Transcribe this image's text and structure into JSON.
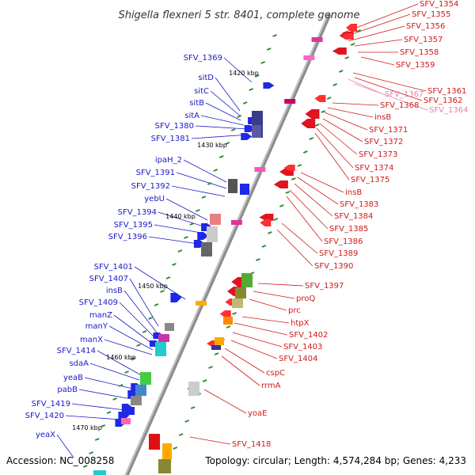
{
  "title": "Shigella flexneri 5 str. 8401, complete genome",
  "accession": "Accession: NC_008258",
  "topology": "Topology: circular; Length: 4,574,284 bp; Genes: 4,233",
  "colors": {
    "left_label": "#1a1ac8",
    "right_label": "#d21919",
    "right_label_faint": "#e87fb0",
    "backbone": "#8c8c8c",
    "tick": "#2e8b2e"
  },
  "kbp_marks": [
    "1420 kbp",
    "1430 kbp",
    "1440 kbp",
    "1450 kbp",
    "1460 kbp",
    "1470 kbp"
  ],
  "left_genes": [
    "SFV_1369",
    "sitD",
    "sitC",
    "sitB",
    "sitA",
    "SFV_1380",
    "SFV_1381",
    "ipaH_2",
    "SFV_1391",
    "SFV_1392",
    "yebU",
    "SFV_1394",
    "SFV_1395",
    "SFV_1396",
    "SFV_1401",
    "SFV_1407",
    "insB",
    "SFV_1409",
    "manZ",
    "manY",
    "manX",
    "SFV_1414",
    "sdaA",
    "yeaB",
    "pabB",
    "SFV_1419",
    "SFV_1420",
    "yeaX"
  ],
  "right_genes": [
    "SFV_1354",
    "SFV_1355",
    "SFV_1356",
    "SFV_1357",
    "SFV_1358",
    "SFV_1359",
    "SFV_1361",
    "SFV_1362",
    "SFV_1364",
    "SFV_1367",
    "SFV_1368",
    "insB",
    "SFV_1371",
    "SFV_1372",
    "SFV_1373",
    "SFV_1374",
    "SFV_1375",
    "insB",
    "SFV_1383",
    "SFV_1384",
    "SFV_1385",
    "SFV_1386",
    "SFV_1389",
    "SFV_1390",
    "SFV_1397",
    "proQ",
    "prc",
    "htpX",
    "SFV_1402",
    "SFV_1403",
    "SFV_1404",
    "cspC",
    "rrmA",
    "yoaE",
    "SFV_1418"
  ],
  "faint_right_genes": [
    "SFV_1364",
    "SFV_1367"
  ]
}
